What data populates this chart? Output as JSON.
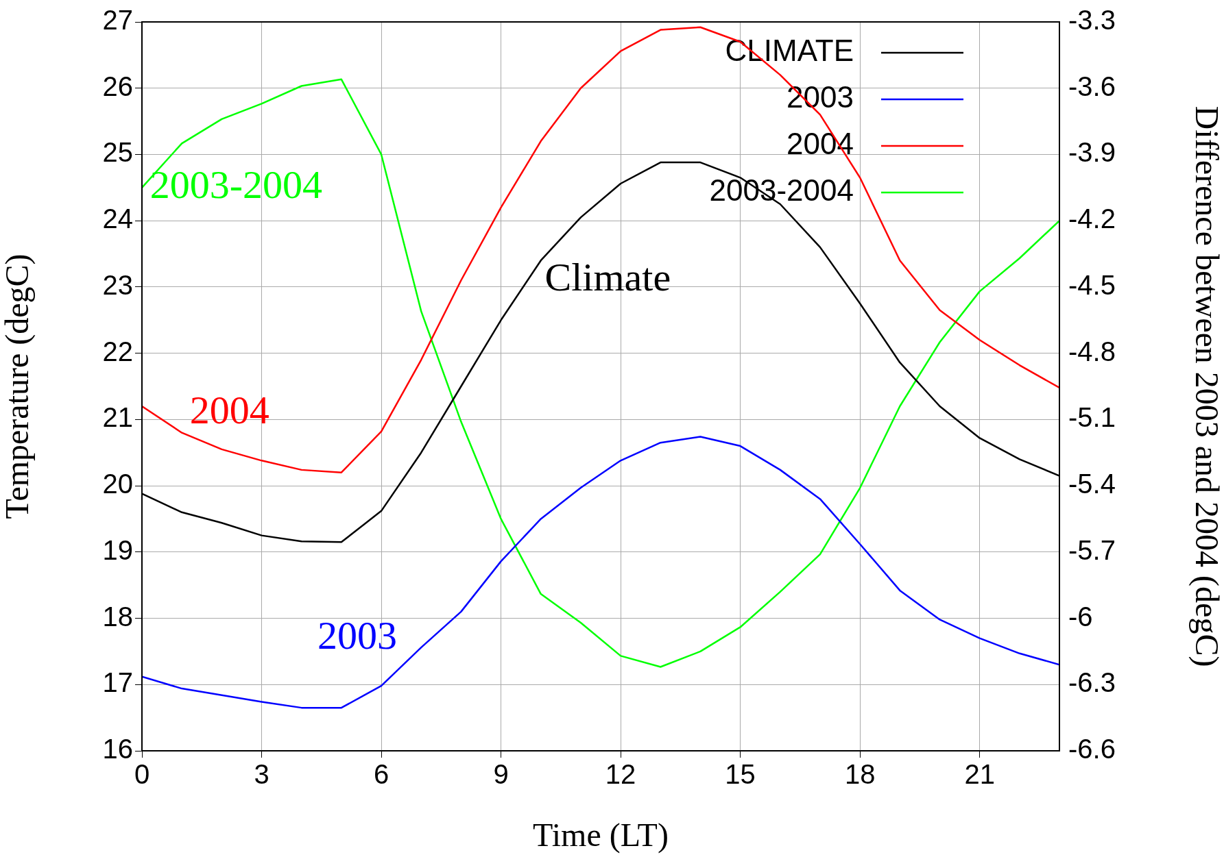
{
  "chart_data": {
    "type": "line",
    "xlabel": "Time (LT)",
    "ylabel": "Temperature (degC)",
    "y2label": "Difference between 2003 and 2004 (degC)",
    "x": [
      0,
      1,
      2,
      3,
      4,
      5,
      6,
      7,
      8,
      9,
      10,
      11,
      12,
      13,
      14,
      15,
      16,
      17,
      18,
      19,
      20,
      21,
      22,
      23
    ],
    "series": [
      {
        "name": "CLIMATE",
        "color": "#000000",
        "values": [
          19.88,
          19.6,
          19.44,
          19.25,
          19.16,
          19.15,
          19.62,
          20.5,
          21.5,
          22.5,
          23.4,
          24.05,
          24.56,
          24.88,
          24.88,
          24.65,
          24.25,
          23.6,
          22.75,
          21.86,
          21.2,
          20.72,
          20.4,
          20.15
        ]
      },
      {
        "name": "2003",
        "color": "#0000ff",
        "values": [
          17.12,
          16.94,
          16.84,
          16.74,
          16.65,
          16.65,
          16.98,
          17.56,
          18.1,
          18.86,
          19.5,
          19.97,
          20.38,
          20.65,
          20.74,
          20.6,
          20.24,
          19.8,
          19.12,
          18.42,
          17.98,
          17.7,
          17.47,
          17.3
        ]
      },
      {
        "name": "2004",
        "color": "#ff0000",
        "values": [
          21.2,
          20.8,
          20.55,
          20.38,
          20.24,
          20.2,
          20.82,
          21.9,
          23.1,
          24.2,
          25.2,
          26.0,
          26.56,
          26.88,
          26.92,
          26.7,
          26.2,
          25.6,
          24.65,
          23.4,
          22.65,
          22.2,
          21.82,
          21.48
        ]
      },
      {
        "name": "2003-2004",
        "color": "#00ff00",
        "axis": "y2",
        "values": [
          -4.05,
          -3.85,
          -3.74,
          -3.67,
          -3.59,
          -3.56,
          -3.9,
          -4.61,
          -5.11,
          -5.55,
          -5.89,
          -6.02,
          -6.17,
          -6.22,
          -6.15,
          -6.04,
          -5.88,
          -5.71,
          -5.41,
          -5.04,
          -4.75,
          -4.52,
          -4.37,
          -4.2
        ]
      }
    ],
    "annotations": [
      "Climate",
      "2003",
      "2004",
      "2003-2004"
    ],
    "xlim": [
      0,
      23
    ],
    "xticks": [
      0,
      3,
      6,
      9,
      12,
      15,
      18,
      21
    ],
    "ylim": [
      16,
      27
    ],
    "yticks": [
      16,
      17,
      18,
      19,
      20,
      21,
      22,
      23,
      24,
      25,
      26,
      27
    ],
    "y2lim": [
      -6.6,
      -3.3
    ],
    "y2ticks": [
      {
        "value": -6.6,
        "label": "-6.6"
      },
      {
        "value": -6.3,
        "label": "-6.3"
      },
      {
        "value": -6,
        "label": "-6"
      },
      {
        "value": -5.7,
        "label": "-5.7"
      },
      {
        "value": -5.4,
        "label": "-5.4"
      },
      {
        "value": -5.1,
        "label": "-5.1"
      },
      {
        "value": -4.8,
        "label": "-4.8"
      },
      {
        "value": -4.5,
        "label": "-4.5"
      },
      {
        "value": -4.2,
        "label": "-4.2"
      },
      {
        "value": -3.9,
        "label": "-3.9"
      },
      {
        "value": -3.6,
        "label": "-3.6"
      },
      {
        "value": -3.3,
        "label": "-3.3"
      }
    ],
    "grid": true,
    "legend": "top right",
    "marker": "none",
    "line_style": "solid"
  }
}
